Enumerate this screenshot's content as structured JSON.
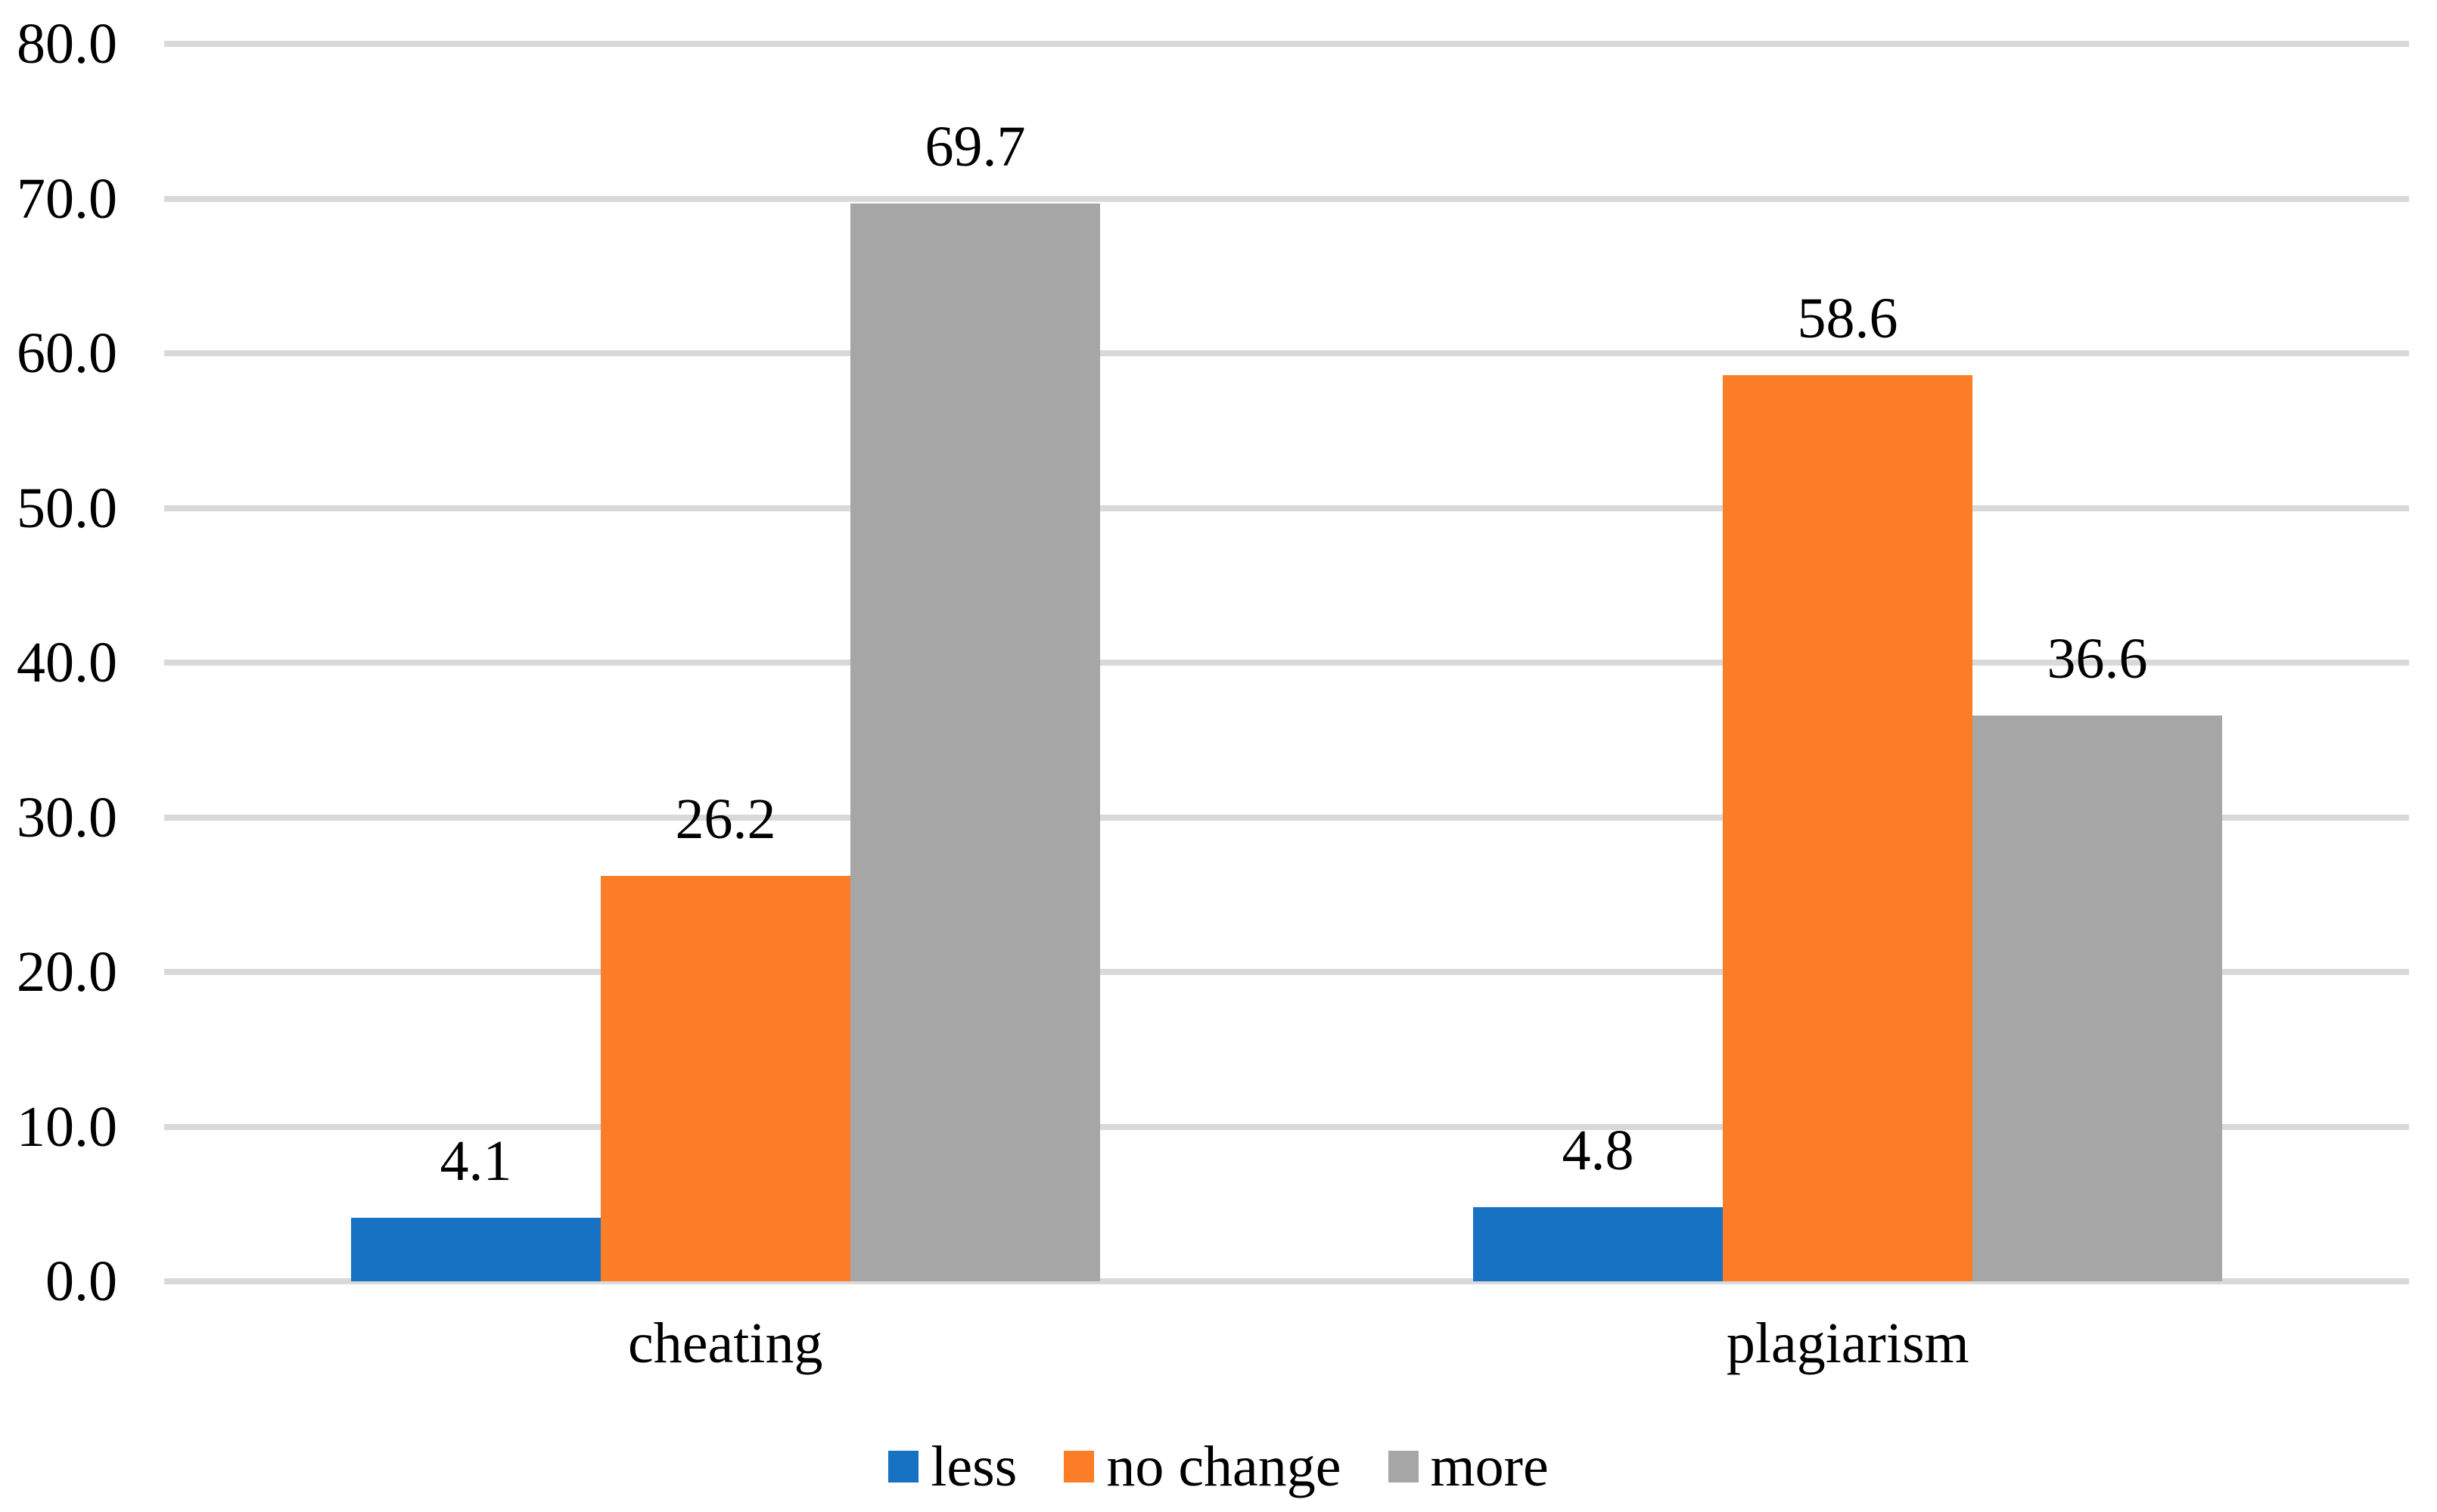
{
  "chart_data": {
    "type": "bar",
    "title": "",
    "xlabel": "",
    "ylabel": "",
    "categories": [
      "cheating",
      "plagiarism"
    ],
    "series": [
      {
        "name": "less",
        "color": "#1772C4",
        "values": [
          4.1,
          4.8
        ]
      },
      {
        "name": "no change",
        "color": "#FB7D28",
        "values": [
          26.2,
          58.6
        ]
      },
      {
        "name": "more",
        "color": "#A6A6A6",
        "values": [
          69.7,
          36.6
        ]
      }
    ],
    "data_labels": [
      [
        "4.1",
        "4.8"
      ],
      [
        "26.2",
        "58.6"
      ],
      [
        "69.7",
        "36.6"
      ]
    ],
    "ylim": [
      0,
      80
    ],
    "yticks": [
      80,
      70,
      60,
      50,
      40,
      30,
      20,
      10,
      0
    ],
    "ytick_labels": [
      "80.0",
      "70.0",
      "60.0",
      "50.0",
      "40.0",
      "30.0",
      "20.0",
      "10.0",
      "0.0"
    ],
    "grid": true,
    "gridline_color": "#D9D9D9",
    "text_color": "#000000",
    "background_color": "#FFFFFF",
    "legend_position": "bottom",
    "legend_labels": [
      "less",
      "no change",
      "more"
    ],
    "data_label_decimals": 1
  }
}
